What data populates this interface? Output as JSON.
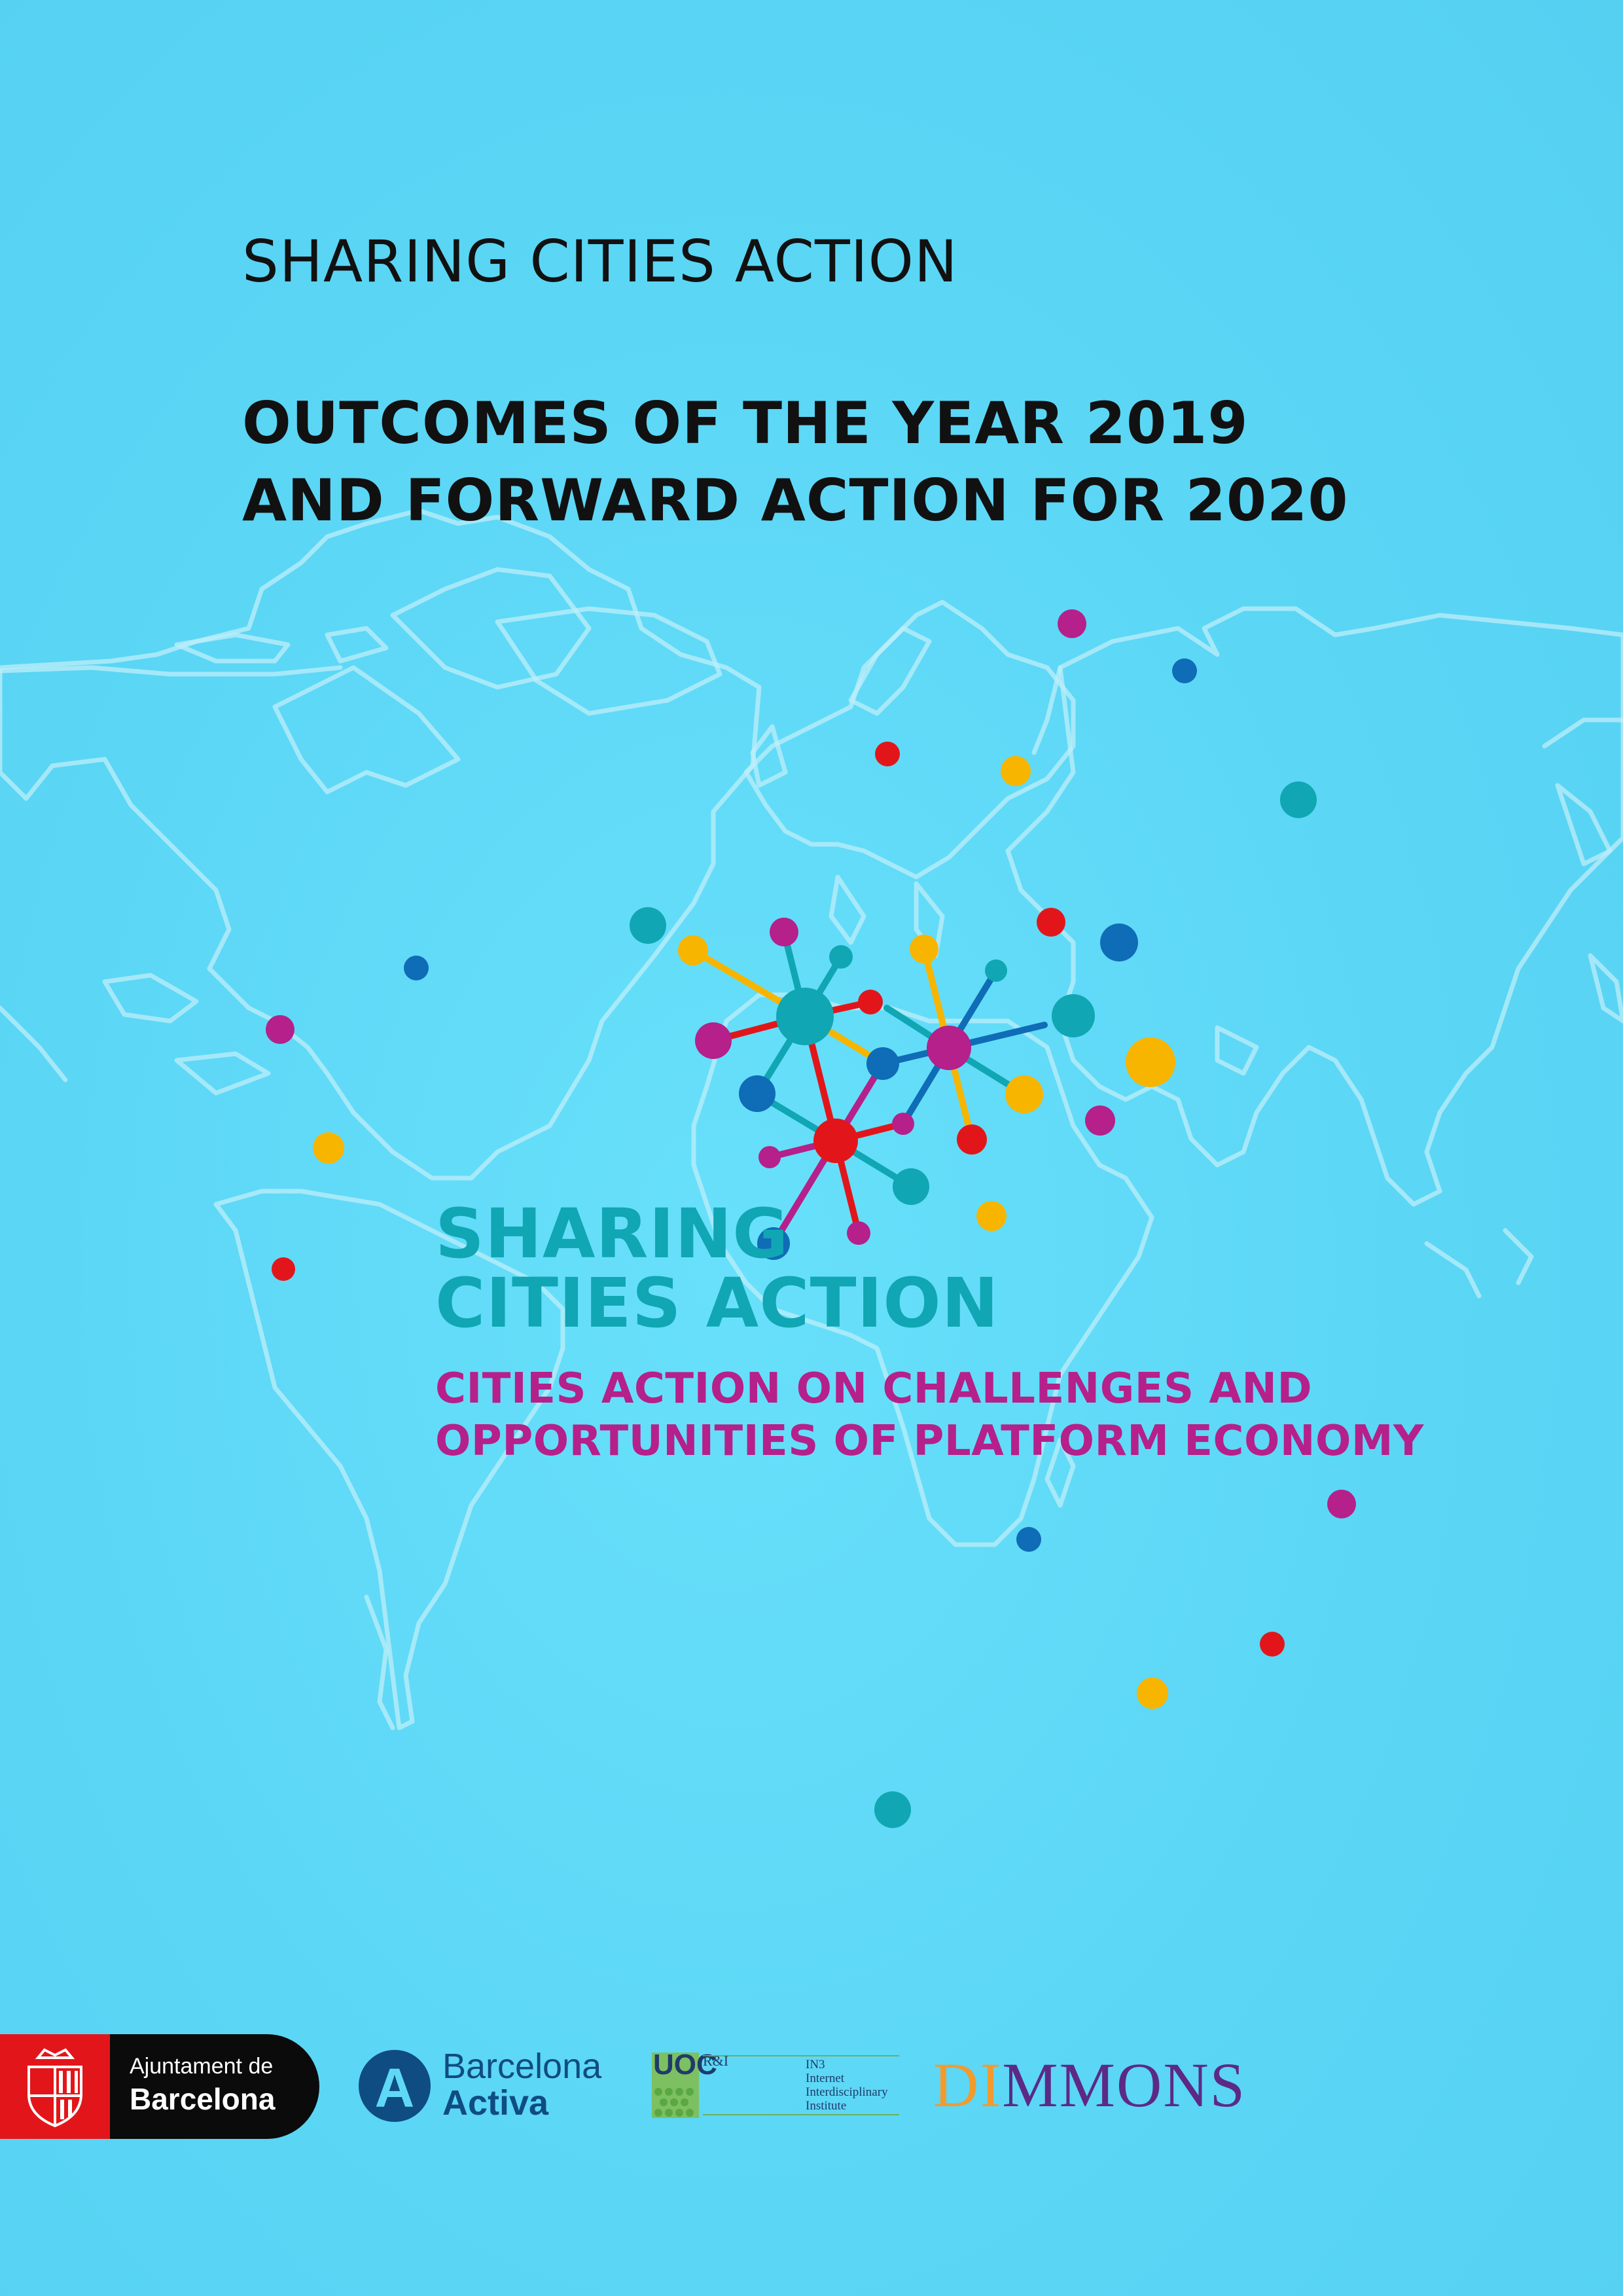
{
  "cover": {
    "series": "SHARING CITIES ACTION",
    "title_lines": [
      "OUTCOMES OF THE YEAR 2019",
      "AND FORWARD ACTION FOR 2020"
    ]
  },
  "emblem": {
    "name_lines": [
      "SHARING",
      "CITIES ACTION"
    ],
    "tagline_lines": [
      "CITIES ACTION ON CHALLENGES AND",
      "OPPORTUNITIES OF PLATFORM ECONOMY"
    ]
  },
  "colors": {
    "background": "#5fd8f6",
    "teal": "#10a6b4",
    "magenta": "#b5208a",
    "red": "#e2161a",
    "blue": "#0f6cb6",
    "yellow": "#f7b500"
  },
  "logos": {
    "ajuntament": {
      "line1": "Ajuntament de",
      "line2": "Barcelona",
      "icon": "barcelona-shield-icon"
    },
    "barcelona_activa": {
      "mark": "A",
      "line1": "Barcelona",
      "line2": "Activa"
    },
    "uoc": {
      "mark": "UOC",
      "sub": "R&I",
      "lines": [
        "IN3",
        "Internet",
        "Interdisciplinary",
        "Institute"
      ]
    },
    "dimmons": {
      "part1": "DI",
      "part2": "MMONS"
    }
  }
}
